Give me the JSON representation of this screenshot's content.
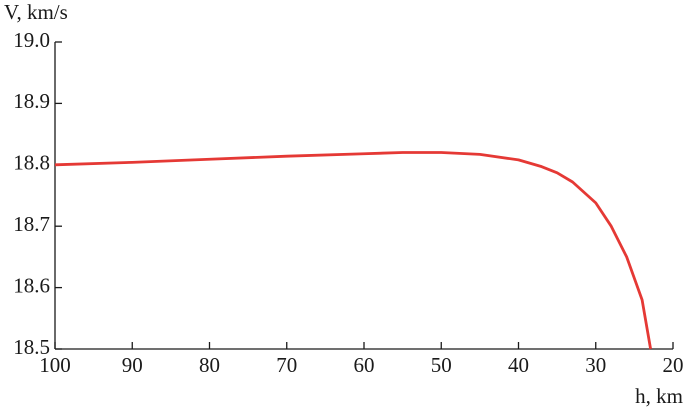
{
  "chart_data": {
    "type": "line",
    "y_label": "V, km/s",
    "x_label": "h, km",
    "x": [
      100,
      90,
      80,
      70,
      60,
      55,
      50,
      45,
      40,
      37,
      35,
      33,
      30,
      28,
      26,
      24,
      22.9
    ],
    "series": [
      {
        "color": "#e53935",
        "values": [
          18.8,
          18.804,
          18.809,
          18.814,
          18.818,
          18.82,
          18.82,
          18.817,
          18.808,
          18.797,
          18.787,
          18.772,
          18.738,
          18.7,
          18.65,
          18.58,
          18.5
        ]
      }
    ],
    "xlim": [
      100,
      20
    ],
    "xticks": [
      100,
      90,
      80,
      70,
      60,
      50,
      40,
      30,
      20
    ],
    "ylim": [
      18.5,
      19.0
    ],
    "yticks": [
      {
        "value": 19.0,
        "label": "19.0"
      },
      18.9,
      18.8,
      18.7,
      18.6,
      18.5
    ]
  }
}
